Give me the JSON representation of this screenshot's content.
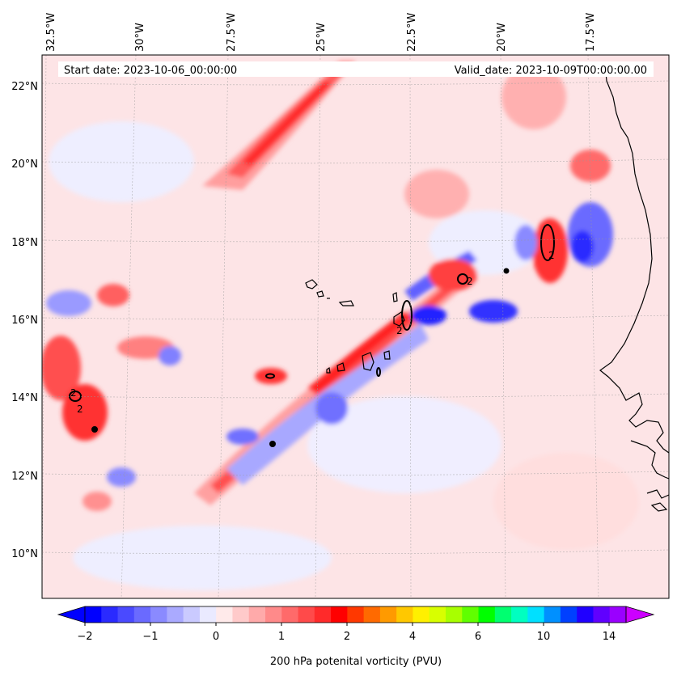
{
  "map": {
    "start_label": "Start date: 2023-10-06_00:00:00",
    "valid_label": "Valid_date: 2023-10-09T00:00:00.00",
    "lon_labels": [
      "32.5°W",
      "30°W",
      "27.5°W",
      "25°W",
      "22.5°W",
      "20°W",
      "17.5°W"
    ],
    "lat_labels": [
      "22°N",
      "20°N",
      "18°N",
      "16°N",
      "14°N",
      "12°N",
      "10°N"
    ],
    "contour_label": "2",
    "field": "200 hPa potential vorticity",
    "colors": {
      "background": "#fbe7ea",
      "positive_light": "#ffb3b3",
      "positive_mid": "#ff7070",
      "positive_strong": "#ff2020",
      "negative_light": "#d0d0ff",
      "negative_mid": "#7a7aff",
      "negative_strong": "#1010ff",
      "contour": "#000000",
      "coastline": "#000000"
    }
  },
  "colorbar": {
    "label": "200 hPa potenital vorticity (PVU)",
    "tick_labels": [
      "−2",
      "−1",
      "0",
      "1",
      "2",
      "4",
      "6",
      "10",
      "14"
    ],
    "colors": [
      "#0000ff",
      "#2a2aff",
      "#4a4aff",
      "#6a6aff",
      "#8a8aff",
      "#aaaaff",
      "#cacaff",
      "#eaeaff",
      "#ffeaea",
      "#ffcaca",
      "#ffaaaa",
      "#ff8a8a",
      "#ff6a6a",
      "#ff4a4a",
      "#ff2a2a",
      "#ff0000",
      "#ff3800",
      "#ff6a00",
      "#ff9a00",
      "#ffc800",
      "#fff000",
      "#d8ff00",
      "#a8ff00",
      "#60ff00",
      "#00ff00",
      "#00ff70",
      "#00ffc0",
      "#00e0ff",
      "#0090ff",
      "#0040ff",
      "#2000ff",
      "#6000ff",
      "#9a00ff"
    ],
    "under_color": "#0000ff",
    "over_color": "#cc00ff"
  }
}
